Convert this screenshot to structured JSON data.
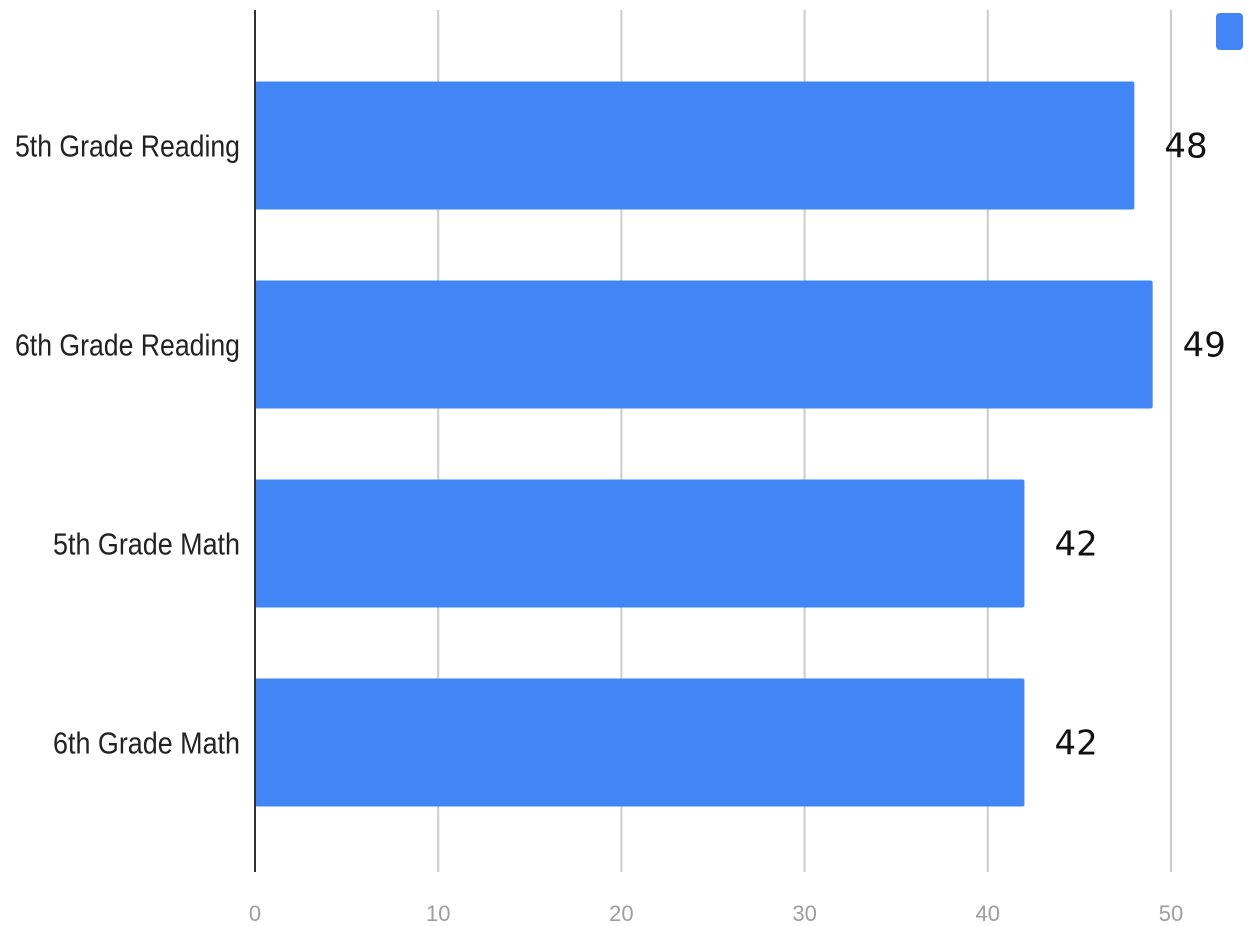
{
  "chart_data": {
    "type": "bar",
    "orientation": "horizontal",
    "categories": [
      "5th Grade Reading",
      "6th Grade Reading",
      "5th Grade Math",
      "6th Grade Math"
    ],
    "series": [
      {
        "values": [
          48,
          49,
          42,
          42
        ],
        "color": "#4285f4"
      }
    ],
    "xlim": [
      0,
      50
    ],
    "xticks": [
      0,
      10,
      20,
      30,
      40,
      50
    ],
    "grid": true,
    "data_labels": true,
    "legend": "top-right",
    "title": "",
    "xlabel": "",
    "ylabel": ""
  }
}
